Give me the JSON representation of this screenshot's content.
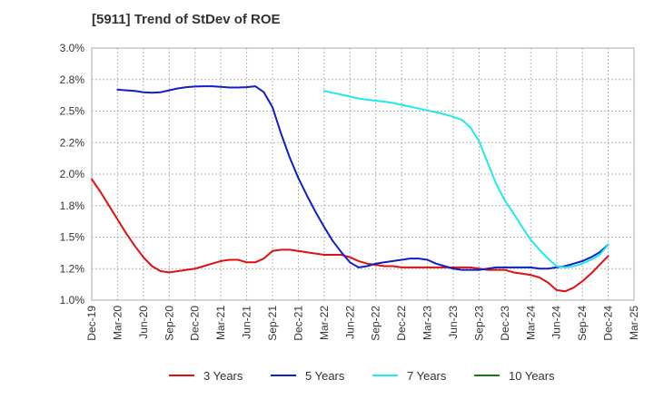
{
  "chart_data": {
    "type": "line",
    "title": "[5911]  Trend of StDev of ROE",
    "xlabel": "",
    "ylabel": "",
    "x_tick_labels": [
      "Dec-19",
      "Mar-20",
      "Jun-20",
      "Sep-20",
      "Dec-20",
      "Mar-21",
      "Jun-21",
      "Sep-21",
      "Dec-21",
      "Mar-22",
      "Jun-22",
      "Sep-22",
      "Dec-22",
      "Mar-23",
      "Jun-23",
      "Sep-23",
      "Dec-23",
      "Mar-24",
      "Jun-24",
      "Sep-24",
      "Dec-24",
      "Mar-25"
    ],
    "y_tick_labels": [
      "1.0%",
      "1.2%",
      "1.5%",
      "1.8%",
      "2.0%",
      "2.2%",
      "2.5%",
      "2.8%",
      "3.0%"
    ],
    "ylim": [
      1.0,
      3.0
    ],
    "grid": true,
    "legend_position": "bottom",
    "series": [
      {
        "name": "3 Years",
        "color": "#dd1111",
        "points": [
          [
            "Dec-19",
            1.96
          ],
          [
            "Jan-20",
            1.86
          ],
          [
            "Feb-20",
            1.75
          ],
          [
            "Mar-20",
            1.64
          ],
          [
            "Apr-20",
            1.53
          ],
          [
            "May-20",
            1.43
          ],
          [
            "Jun-20",
            1.34
          ],
          [
            "Jul-20",
            1.27
          ],
          [
            "Aug-20",
            1.23
          ],
          [
            "Sep-20",
            1.22
          ],
          [
            "Oct-20",
            1.23
          ],
          [
            "Nov-20",
            1.24
          ],
          [
            "Dec-20",
            1.25
          ],
          [
            "Jan-21",
            1.27
          ],
          [
            "Feb-21",
            1.29
          ],
          [
            "Mar-21",
            1.31
          ],
          [
            "Apr-21",
            1.32
          ],
          [
            "May-21",
            1.32
          ],
          [
            "Jun-21",
            1.3
          ],
          [
            "Jul-21",
            1.3
          ],
          [
            "Aug-21",
            1.33
          ],
          [
            "Sep-21",
            1.39
          ],
          [
            "Oct-21",
            1.4
          ],
          [
            "Nov-21",
            1.4
          ],
          [
            "Dec-21",
            1.39
          ],
          [
            "Jan-22",
            1.38
          ],
          [
            "Feb-22",
            1.37
          ],
          [
            "Mar-22",
            1.36
          ],
          [
            "Apr-22",
            1.36
          ],
          [
            "May-22",
            1.36
          ],
          [
            "Jun-22",
            1.34
          ],
          [
            "Jul-22",
            1.31
          ],
          [
            "Aug-22",
            1.29
          ],
          [
            "Sep-22",
            1.28
          ],
          [
            "Oct-22",
            1.27
          ],
          [
            "Nov-22",
            1.27
          ],
          [
            "Dec-22",
            1.26
          ],
          [
            "Jan-23",
            1.26
          ],
          [
            "Feb-23",
            1.26
          ],
          [
            "Mar-23",
            1.26
          ],
          [
            "Apr-23",
            1.26
          ],
          [
            "May-23",
            1.26
          ],
          [
            "Jun-23",
            1.26
          ],
          [
            "Jul-23",
            1.26
          ],
          [
            "Aug-23",
            1.26
          ],
          [
            "Sep-23",
            1.25
          ],
          [
            "Oct-23",
            1.24
          ],
          [
            "Nov-23",
            1.24
          ],
          [
            "Dec-23",
            1.24
          ],
          [
            "Jan-24",
            1.22
          ],
          [
            "Feb-24",
            1.21
          ],
          [
            "Mar-24",
            1.2
          ],
          [
            "Apr-24",
            1.18
          ],
          [
            "May-24",
            1.14
          ],
          [
            "Jun-24",
            1.08
          ],
          [
            "Jul-24",
            1.07
          ],
          [
            "Aug-24",
            1.1
          ],
          [
            "Sep-24",
            1.15
          ],
          [
            "Oct-24",
            1.21
          ],
          [
            "Nov-24",
            1.28
          ],
          [
            "Dec-24",
            1.35
          ]
        ]
      },
      {
        "name": "5 Years",
        "color": "#0f1fc6",
        "points": [
          [
            "Mar-20",
            2.67
          ],
          [
            "Apr-20",
            2.665
          ],
          [
            "May-20",
            2.66
          ],
          [
            "Jun-20",
            2.65
          ],
          [
            "Jul-20",
            2.645
          ],
          [
            "Aug-20",
            2.65
          ],
          [
            "Sep-20",
            2.665
          ],
          [
            "Oct-20",
            2.68
          ],
          [
            "Nov-20",
            2.69
          ],
          [
            "Dec-20",
            2.695
          ],
          [
            "Jan-21",
            2.697
          ],
          [
            "Feb-21",
            2.697
          ],
          [
            "Mar-21",
            2.692
          ],
          [
            "Apr-21",
            2.687
          ],
          [
            "May-21",
            2.687
          ],
          [
            "Jun-21",
            2.69
          ],
          [
            "Jul-21",
            2.697
          ],
          [
            "Aug-21",
            2.65
          ],
          [
            "Sep-21",
            2.53
          ],
          [
            "Oct-21",
            2.32
          ],
          [
            "Nov-21",
            2.13
          ],
          [
            "Dec-21",
            1.97
          ],
          [
            "Jan-22",
            1.83
          ],
          [
            "Feb-22",
            1.7
          ],
          [
            "Mar-22",
            1.58
          ],
          [
            "Apr-22",
            1.47
          ],
          [
            "May-22",
            1.38
          ],
          [
            "Jun-22",
            1.3
          ],
          [
            "Jul-22",
            1.26
          ],
          [
            "Aug-22",
            1.27
          ],
          [
            "Sep-22",
            1.29
          ],
          [
            "Oct-22",
            1.3
          ],
          [
            "Nov-22",
            1.31
          ],
          [
            "Dec-22",
            1.32
          ],
          [
            "Jan-23",
            1.33
          ],
          [
            "Feb-23",
            1.33
          ],
          [
            "Mar-23",
            1.32
          ],
          [
            "Apr-23",
            1.29
          ],
          [
            "May-23",
            1.27
          ],
          [
            "Jun-23",
            1.25
          ],
          [
            "Jul-23",
            1.24
          ],
          [
            "Aug-23",
            1.24
          ],
          [
            "Sep-23",
            1.24
          ],
          [
            "Oct-23",
            1.25
          ],
          [
            "Nov-23",
            1.26
          ],
          [
            "Dec-23",
            1.26
          ],
          [
            "Jan-24",
            1.26
          ],
          [
            "Feb-24",
            1.26
          ],
          [
            "Mar-24",
            1.26
          ],
          [
            "Apr-24",
            1.25
          ],
          [
            "May-24",
            1.25
          ],
          [
            "Jun-24",
            1.26
          ],
          [
            "Jul-24",
            1.27
          ],
          [
            "Aug-24",
            1.29
          ],
          [
            "Sep-24",
            1.31
          ],
          [
            "Oct-24",
            1.34
          ],
          [
            "Nov-24",
            1.38
          ],
          [
            "Dec-24",
            1.44
          ]
        ]
      },
      {
        "name": "7 Years",
        "color": "#22e8e8",
        "points": [
          [
            "Mar-22",
            2.66
          ],
          [
            "Apr-22",
            2.645
          ],
          [
            "May-22",
            2.63
          ],
          [
            "Jun-22",
            2.615
          ],
          [
            "Jul-22",
            2.6
          ],
          [
            "Aug-22",
            2.59
          ],
          [
            "Sep-22",
            2.583
          ],
          [
            "Oct-22",
            2.575
          ],
          [
            "Nov-22",
            2.565
          ],
          [
            "Dec-22",
            2.55
          ],
          [
            "Jan-23",
            2.535
          ],
          [
            "Feb-23",
            2.52
          ],
          [
            "Mar-23",
            2.505
          ],
          [
            "Apr-23",
            2.49
          ],
          [
            "May-23",
            2.475
          ],
          [
            "Jun-23",
            2.455
          ],
          [
            "Jul-23",
            2.43
          ],
          [
            "Aug-23",
            2.37
          ],
          [
            "Sep-23",
            2.26
          ],
          [
            "Oct-23",
            2.09
          ],
          [
            "Nov-23",
            1.92
          ],
          [
            "Dec-23",
            1.79
          ],
          [
            "Jan-24",
            1.69
          ],
          [
            "Feb-24",
            1.58
          ],
          [
            "Mar-24",
            1.48
          ],
          [
            "Apr-24",
            1.4
          ],
          [
            "May-24",
            1.33
          ],
          [
            "Jun-24",
            1.27
          ],
          [
            "Jul-24",
            1.26
          ],
          [
            "Aug-24",
            1.27
          ],
          [
            "Sep-24",
            1.29
          ],
          [
            "Oct-24",
            1.32
          ],
          [
            "Nov-24",
            1.36
          ],
          [
            "Dec-24",
            1.44
          ]
        ]
      },
      {
        "name": "10 Years",
        "color": "#1a7a1a",
        "points": []
      }
    ]
  }
}
